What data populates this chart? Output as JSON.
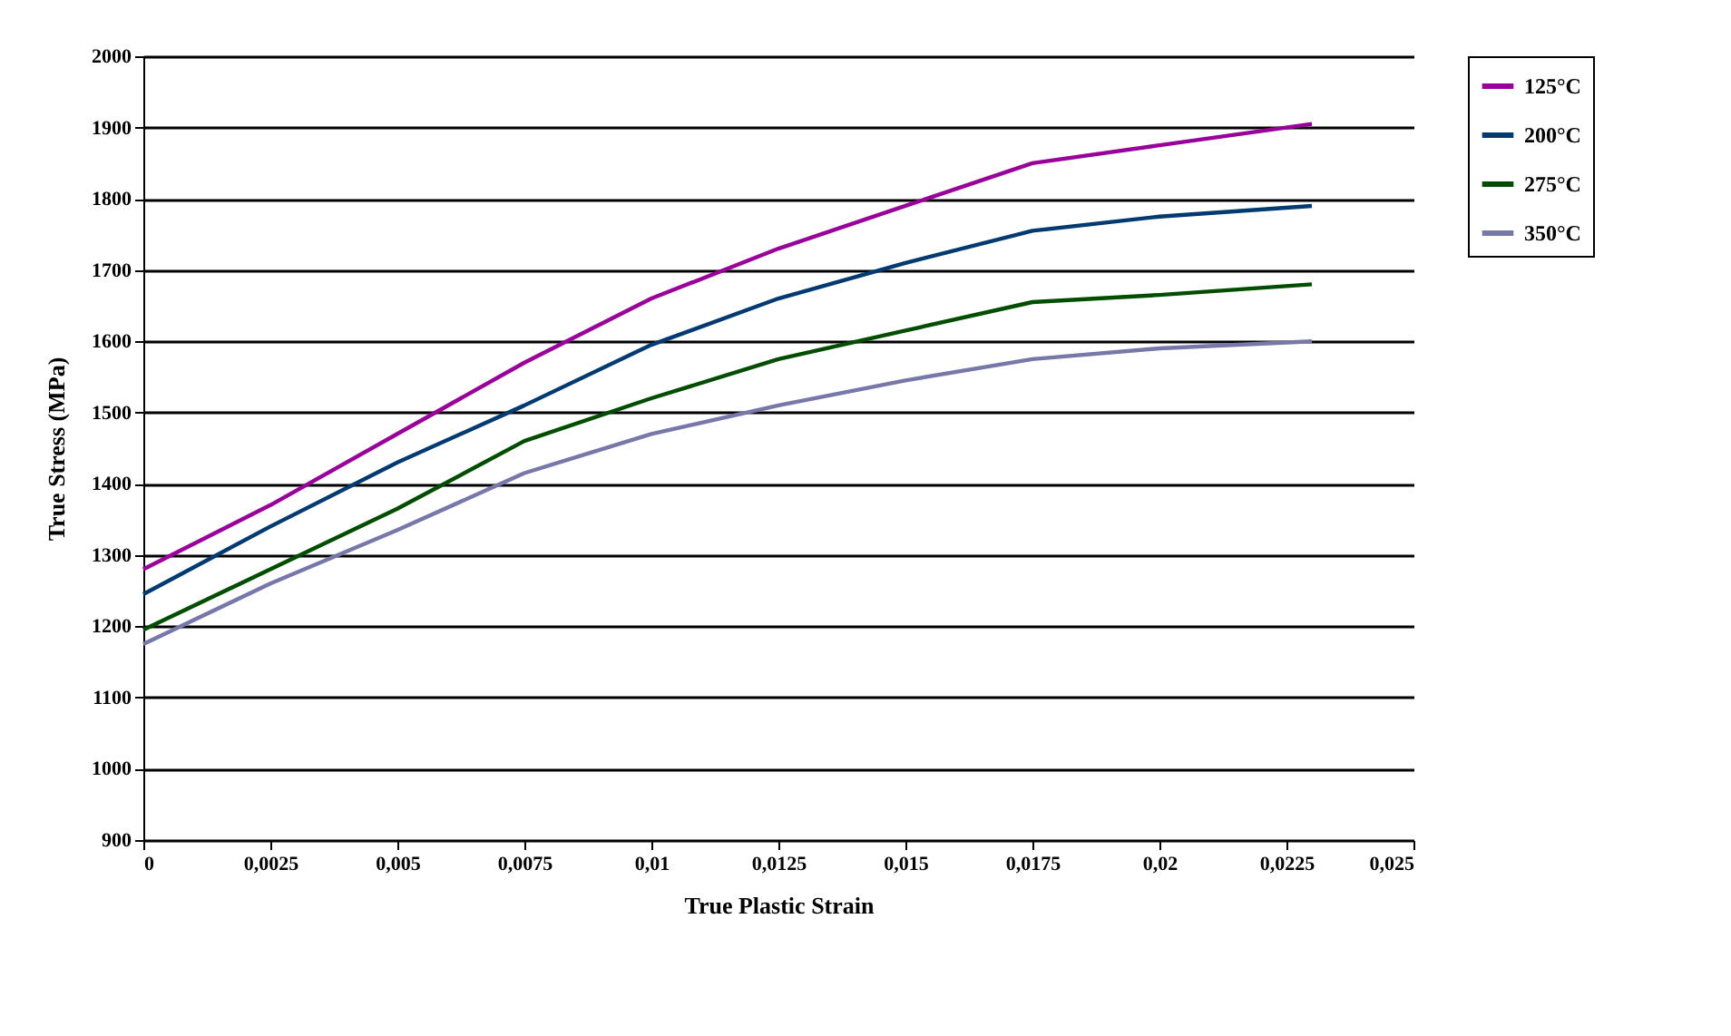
{
  "chart_data": {
    "type": "line",
    "xlabel": "True Plastic Strain",
    "ylabel": "True Stress (MPa)",
    "x": [
      0,
      0.0025,
      0.005,
      0.0075,
      0.01,
      0.0125,
      0.015,
      0.0175,
      0.02,
      0.023
    ],
    "series": [
      {
        "name": "125°C",
        "color": "#990099",
        "values": [
          1280,
          1370,
          1470,
          1570,
          1660,
          1730,
          1790,
          1850,
          1875,
          1905
        ]
      },
      {
        "name": "200°C",
        "color": "#003a70",
        "values": [
          1245,
          1340,
          1430,
          1510,
          1595,
          1660,
          1710,
          1755,
          1775,
          1790
        ]
      },
      {
        "name": "275°C",
        "color": "#004d00",
        "values": [
          1195,
          1280,
          1365,
          1460,
          1520,
          1575,
          1615,
          1655,
          1665,
          1680
        ]
      },
      {
        "name": "350°C",
        "color": "#7777aa",
        "values": [
          1175,
          1260,
          1335,
          1415,
          1470,
          1510,
          1545,
          1575,
          1590,
          1600
        ]
      }
    ],
    "xlim": [
      0,
      0.025
    ],
    "xticks": [
      0,
      {
        "value": 0.0025,
        "label": "0,0025"
      },
      {
        "value": 0.005,
        "label": "0,005"
      },
      {
        "value": 0.0075,
        "label": "0,0075"
      },
      {
        "value": 0.01,
        "label": "0,01"
      },
      {
        "value": 0.0125,
        "label": "0,0125"
      },
      {
        "value": 0.015,
        "label": "0,015"
      },
      {
        "value": 0.0175,
        "label": "0,0175"
      },
      {
        "value": 0.02,
        "label": "0,02"
      },
      {
        "value": 0.0225,
        "label": "0,0225"
      },
      {
        "value": 0.025,
        "label": "0,025"
      }
    ],
    "ylim": [
      900,
      2000
    ],
    "yticks": [
      900,
      1000,
      1100,
      1200,
      1300,
      1400,
      1500,
      1600,
      1700,
      1800,
      1900,
      2000
    ],
    "grid": "y",
    "legend": "right",
    "marker": "none",
    "line_style": "solid"
  }
}
